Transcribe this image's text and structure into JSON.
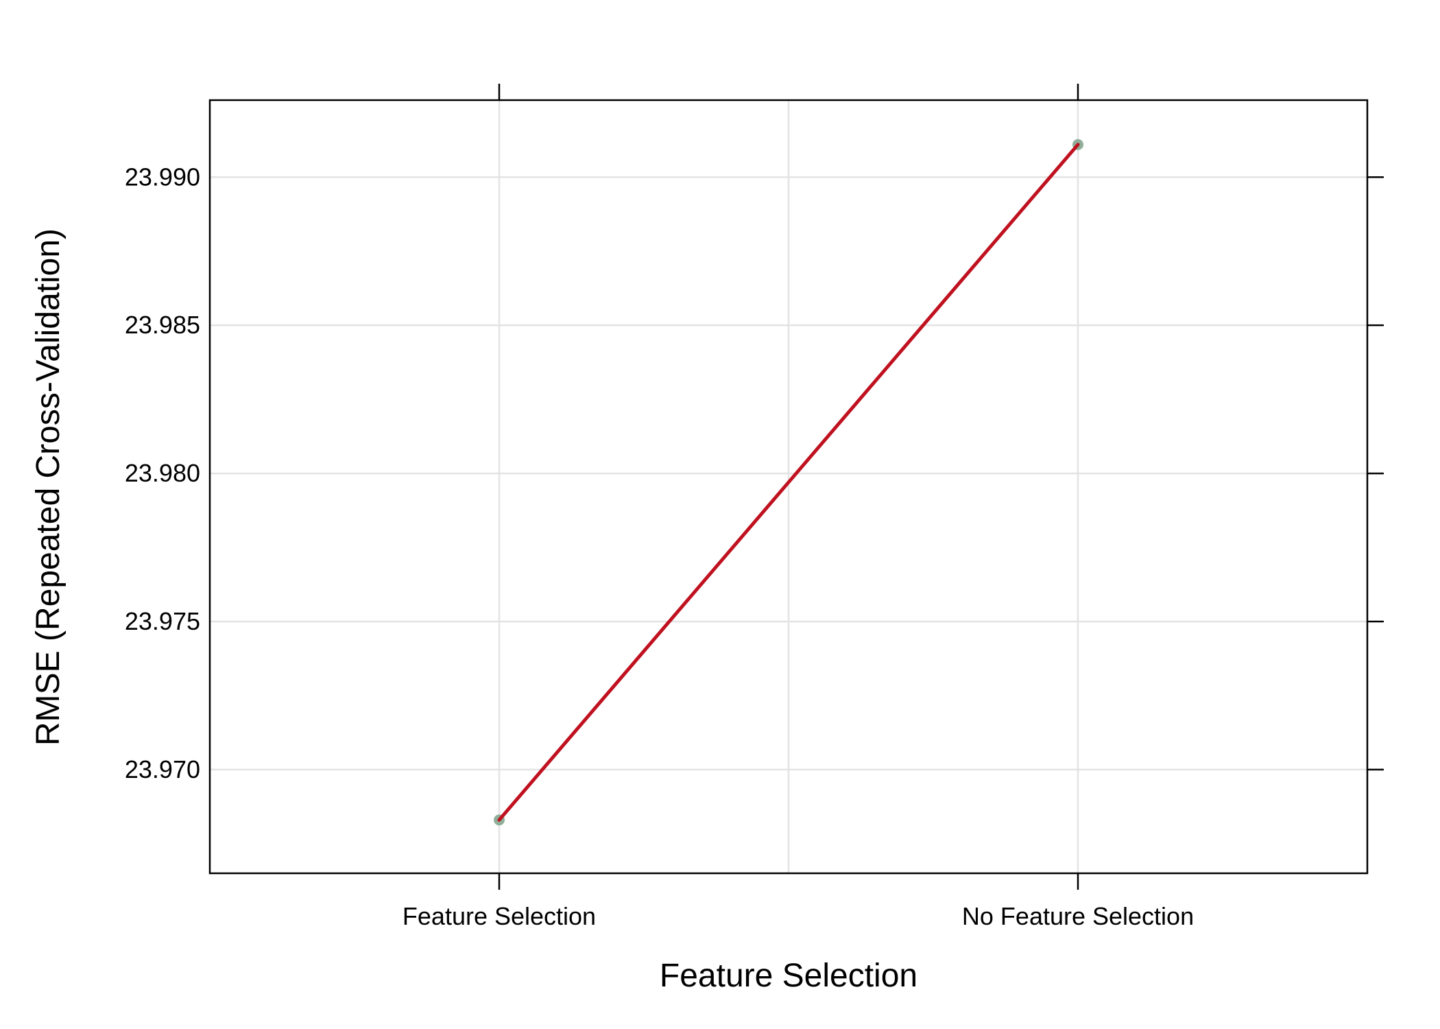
{
  "chart_data": {
    "type": "line",
    "categories": [
      "Feature Selection",
      "No Feature Selection"
    ],
    "series": [
      {
        "values": [
          23.9683,
          23.9911
        ]
      }
    ],
    "title": "",
    "xlabel": "Feature Selection",
    "ylabel": "RMSE (Repeated Cross-Validation)",
    "ylim": [
      23.9665,
      23.9926
    ],
    "y_ticks": [
      23.97,
      23.975,
      23.98,
      23.985,
      23.99
    ],
    "y_tick_labels": [
      "23.970",
      "23.975",
      "23.980",
      "23.985",
      "23.990"
    ],
    "grid": true,
    "legend": "none",
    "colors": {
      "line": "#C0111F",
      "point": "#8FAF9A",
      "grid": "#E3E3E3",
      "frame": "#000000"
    }
  }
}
